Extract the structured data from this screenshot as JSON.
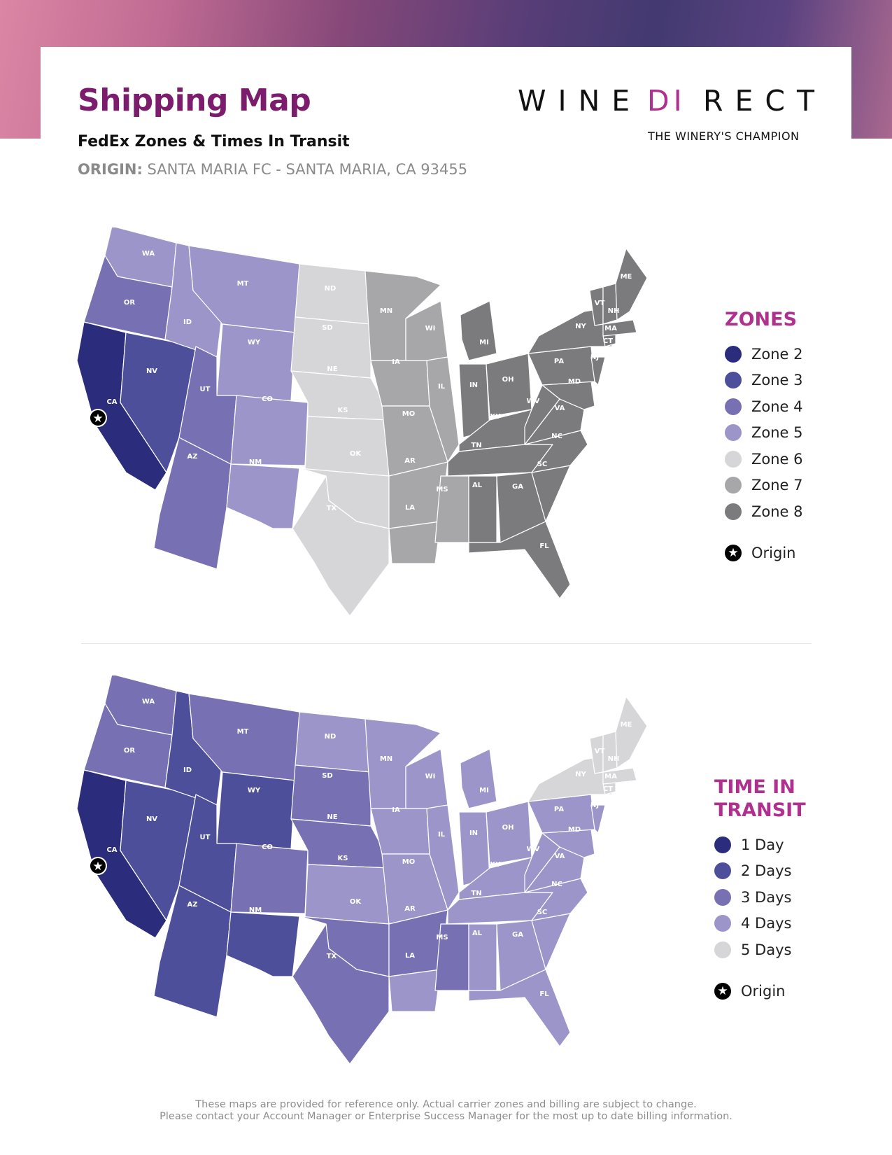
{
  "header": {
    "title": "Shipping Map",
    "subtitle": "FedEx Zones & Times In Transit",
    "origin_label": "ORIGIN:",
    "origin_value": "SANTA MARIA FC - SANTA MARIA, CA 93455"
  },
  "brand": {
    "logo_left": "WINE",
    "logo_mark": "DI",
    "logo_right": "RECT",
    "tagline": "THE WINERY'S CHAMPION",
    "accent_color": "#b0308e"
  },
  "zones_legend": {
    "title": "ZONES",
    "items": [
      {
        "label": "Zone 2",
        "color": "#2b2d7c"
      },
      {
        "label": "Zone 3",
        "color": "#4d4f9b"
      },
      {
        "label": "Zone 4",
        "color": "#7770b2"
      },
      {
        "label": "Zone 5",
        "color": "#9b95c9"
      },
      {
        "label": "Zone 6",
        "color": "#d6d6d8"
      },
      {
        "label": "Zone 7",
        "color": "#a7a7a9"
      },
      {
        "label": "Zone 8",
        "color": "#7b7b7d"
      }
    ],
    "origin_label": "Origin"
  },
  "transit_legend": {
    "title_line1": "TIME IN",
    "title_line2": "TRANSIT",
    "items": [
      {
        "label": "1 Day",
        "color": "#2b2d7c"
      },
      {
        "label": "2 Days",
        "color": "#4d4f9b"
      },
      {
        "label": "3 Days",
        "color": "#7770b2"
      },
      {
        "label": "4 Days",
        "color": "#9b95c9"
      },
      {
        "label": "5 Days",
        "color": "#d6d6d8"
      }
    ],
    "origin_label": "Origin"
  },
  "state_labels": {
    "WA": "WA",
    "OR": "OR",
    "CA": "CA",
    "ID": "ID",
    "NV": "NV",
    "MT": "MT",
    "WY": "WY",
    "UT": "UT",
    "AZ": "AZ",
    "CO": "CO",
    "NM": "NM",
    "ND": "ND",
    "SD": "SD",
    "NE": "NE",
    "KS": "KS",
    "OK": "OK",
    "TX": "TX",
    "MN": "MN",
    "IA": "IA",
    "MO": "MO",
    "AR": "AR",
    "LA": "LA",
    "WI": "WI",
    "IL": "IL",
    "MI": "MI",
    "IN": "IN",
    "OH": "OH",
    "KY": "KY",
    "TN": "TN",
    "MS": "MS",
    "AL": "AL",
    "GA": "GA",
    "FL": "FL",
    "SC": "SC",
    "NC": "NC",
    "VA": "VA",
    "WV": "WV",
    "MD": "MD",
    "PA": "PA",
    "NY": "NY",
    "NJ": "NJ",
    "CT": "CT",
    "MA": "MA",
    "VT": "VT",
    "NH": "NH",
    "ME": "ME"
  },
  "zones_by_state": {
    "CA": 2,
    "NV": 3,
    "OR": 4,
    "AZ": 4,
    "UT": 4,
    "WA": 5,
    "ID": 5,
    "MT": 5,
    "WY": 5,
    "CO": 5,
    "NM": 5,
    "ND": 6,
    "SD": 6,
    "NE": 6,
    "KS": 6,
    "OK": 6,
    "TX": 6,
    "MN": 7,
    "IA": 7,
    "MO": 7,
    "AR": 7,
    "LA": 7,
    "WI": 7,
    "IL": 7,
    "MS": 7,
    "MI": 8,
    "IN": 8,
    "OH": 8,
    "KY": 8,
    "TN": 8,
    "AL": 8,
    "GA": 8,
    "FL": 8,
    "SC": 8,
    "NC": 8,
    "VA": 8,
    "WV": 8,
    "MD": 8,
    "PA": 8,
    "NY": 8,
    "NJ": 8,
    "CT": 8,
    "MA": 8,
    "VT": 8,
    "NH": 8,
    "ME": 8
  },
  "transit_days_by_state": {
    "CA": 1,
    "NV": 2,
    "AZ": 2,
    "UT": 2,
    "ID": 2,
    "NM": 2,
    "WY": 2,
    "WA": 3,
    "OR": 3,
    "MT": 3,
    "CO": 3,
    "TX": 3,
    "OK": 3,
    "AR": 3,
    "MS": 3,
    "SD": 3,
    "NE": 3,
    "ND": 4,
    "KS": 4,
    "MN": 4,
    "IA": 4,
    "MO": 4,
    "LA": 4,
    "WI": 4,
    "IL": 4,
    "MI": 4,
    "IN": 4,
    "OH": 4,
    "KY": 4,
    "TN": 4,
    "AL": 4,
    "GA": 4,
    "FL": 4,
    "SC": 4,
    "NC": 4,
    "VA": 4,
    "WV": 4,
    "MD": 4,
    "PA": 4,
    "NJ": 4,
    "NY": 5,
    "CT": 5,
    "MA": 5,
    "VT": 5,
    "NH": 5,
    "ME": 5
  },
  "footer": {
    "line1": "These maps are provided for reference only. Actual carrier zones and billing are subject to change.",
    "line2": "Please contact your Account Manager or Enterprise Success Manager for the most up to date billing information."
  }
}
